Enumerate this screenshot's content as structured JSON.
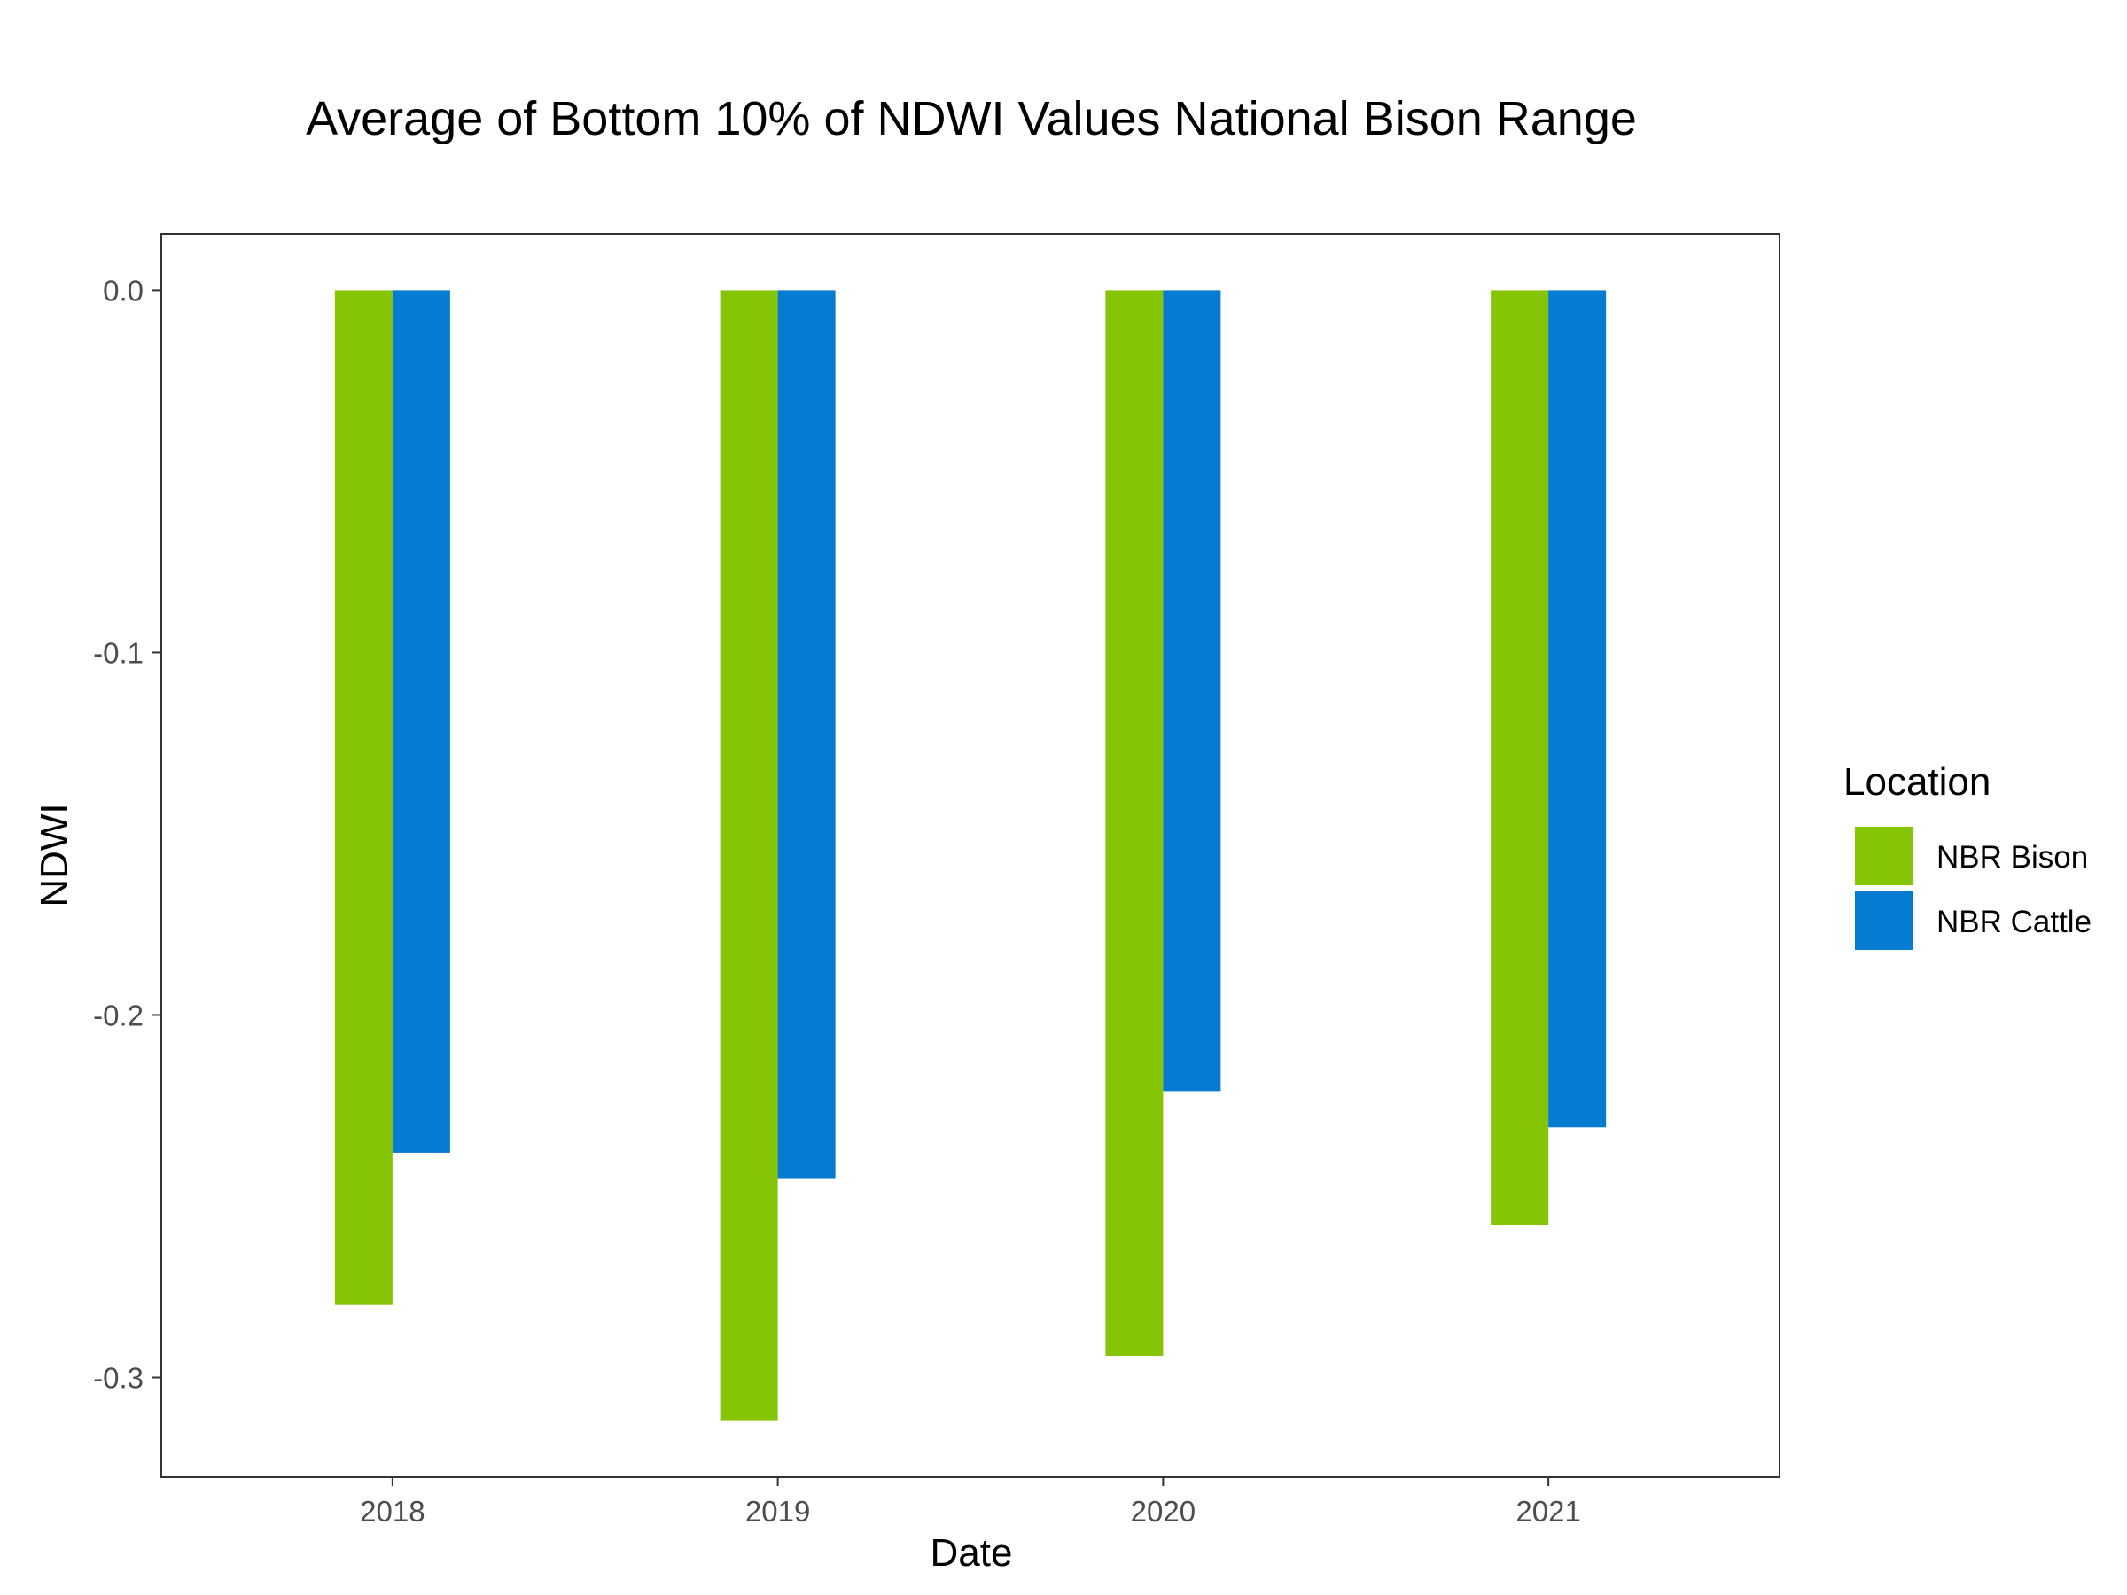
{
  "chart_data": {
    "type": "bar",
    "title": "Average of Bottom 10% of NDWI Values National Bison Range",
    "xlabel": "Date",
    "ylabel": "NDWI",
    "categories": [
      "2018",
      "2019",
      "2020",
      "2021"
    ],
    "series": [
      {
        "name": "NBR Bison",
        "color": "#86C406",
        "values": [
          -0.28,
          -0.312,
          -0.294,
          -0.258
        ]
      },
      {
        "name": "NBR Cattle",
        "color": "#067BD2",
        "values": [
          -0.238,
          -0.245,
          -0.221,
          -0.231
        ]
      }
    ],
    "ylim": [
      -0.3275,
      0.0155
    ],
    "yticks": [
      0.0,
      -0.1,
      -0.2,
      -0.3
    ],
    "ytick_labels": [
      "0.0",
      "-0.1",
      "-0.2",
      "-0.3"
    ],
    "legend": {
      "title": "Location",
      "placement": "right"
    },
    "grid": false
  }
}
